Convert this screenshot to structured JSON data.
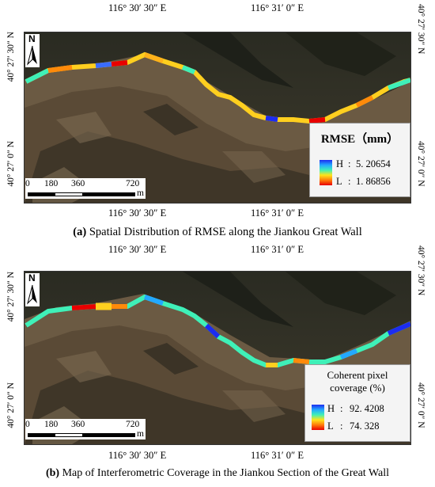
{
  "longitude_labels": {
    "west": "116° 30′ 30″ E",
    "east": "116° 31′ 0″ E"
  },
  "latitude_labels": {
    "north": "40° 27′ 30″ N",
    "south": "40° 27′ 0″ N"
  },
  "north_arrow": {
    "letter": "N",
    "icon": "north-arrow-icon"
  },
  "scale_bar": {
    "ticks": [
      "0",
      "180",
      "360",
      "720"
    ],
    "unit": "m"
  },
  "colors": {
    "high": "#1c2cf0",
    "mid": "#3ff0b8",
    "low": "#e80000"
  },
  "panel_a": {
    "legend": {
      "title": "RMSE（mm）",
      "high_label": "H",
      "high_value": "5. 20654",
      "low_label": "L",
      "low_value": "1. 86856"
    },
    "caption": {
      "prefix": "(a)",
      "text": " Spatial Distribution of RMSE along the Jiankou Great Wall"
    }
  },
  "panel_b": {
    "legend": {
      "title_line1": "Coherent pixel",
      "title_line2": "coverage (%)",
      "high_label": "H",
      "high_value": "92. 4208",
      "low_label": "L",
      "low_value": "74. 328"
    },
    "caption": {
      "prefix": "(b)",
      "text": " Map of Interferometric Coverage in the Jiankou Section of the Great Wall"
    }
  }
}
